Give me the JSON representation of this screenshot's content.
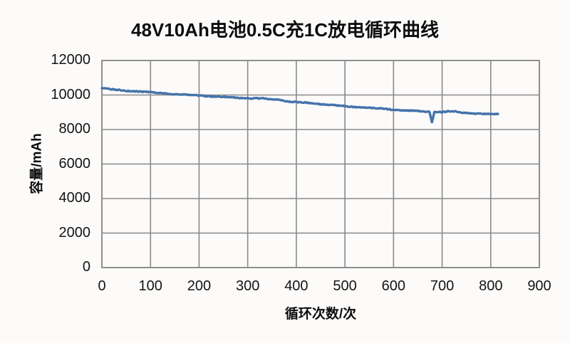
{
  "chart_data": {
    "type": "line",
    "title": "48V10Ah电池0.5C充1C放电循环曲线",
    "xlabel": "循环次数/次",
    "ylabel": "容量/mAh",
    "xlim": [
      0,
      900
    ],
    "ylim": [
      0,
      12000
    ],
    "x_ticks": [
      0,
      100,
      200,
      300,
      400,
      500,
      600,
      700,
      800,
      900
    ],
    "y_ticks": [
      0,
      2000,
      4000,
      6000,
      8000,
      10000,
      12000
    ],
    "grid": true,
    "legend": false,
    "colors": {
      "line": "#4473aa",
      "grid": "#8a8a8a",
      "text": "#0d0d0d",
      "background": "#fcfbfa"
    },
    "series": [
      {
        "points": [
          [
            0,
            10380
          ],
          [
            15,
            10330
          ],
          [
            30,
            10290
          ],
          [
            50,
            10240
          ],
          [
            70,
            10200
          ],
          [
            100,
            10140
          ],
          [
            130,
            10090
          ],
          [
            160,
            10040
          ],
          [
            200,
            9990
          ],
          [
            230,
            9930
          ],
          [
            260,
            9880
          ],
          [
            300,
            9820
          ],
          [
            330,
            9780
          ],
          [
            360,
            9720
          ],
          [
            380,
            9630
          ],
          [
            400,
            9570
          ],
          [
            430,
            9520
          ],
          [
            460,
            9460
          ],
          [
            500,
            9360
          ],
          [
            530,
            9310
          ],
          [
            560,
            9250
          ],
          [
            600,
            9150
          ],
          [
            630,
            9090
          ],
          [
            655,
            9040
          ],
          [
            674,
            9015
          ],
          [
            679,
            8420
          ],
          [
            684,
            9000
          ],
          [
            700,
            9005
          ],
          [
            713,
            9040
          ],
          [
            726,
            9020
          ],
          [
            740,
            8975
          ],
          [
            755,
            8950
          ],
          [
            775,
            8930
          ],
          [
            795,
            8915
          ],
          [
            815,
            8900
          ]
        ]
      }
    ]
  }
}
